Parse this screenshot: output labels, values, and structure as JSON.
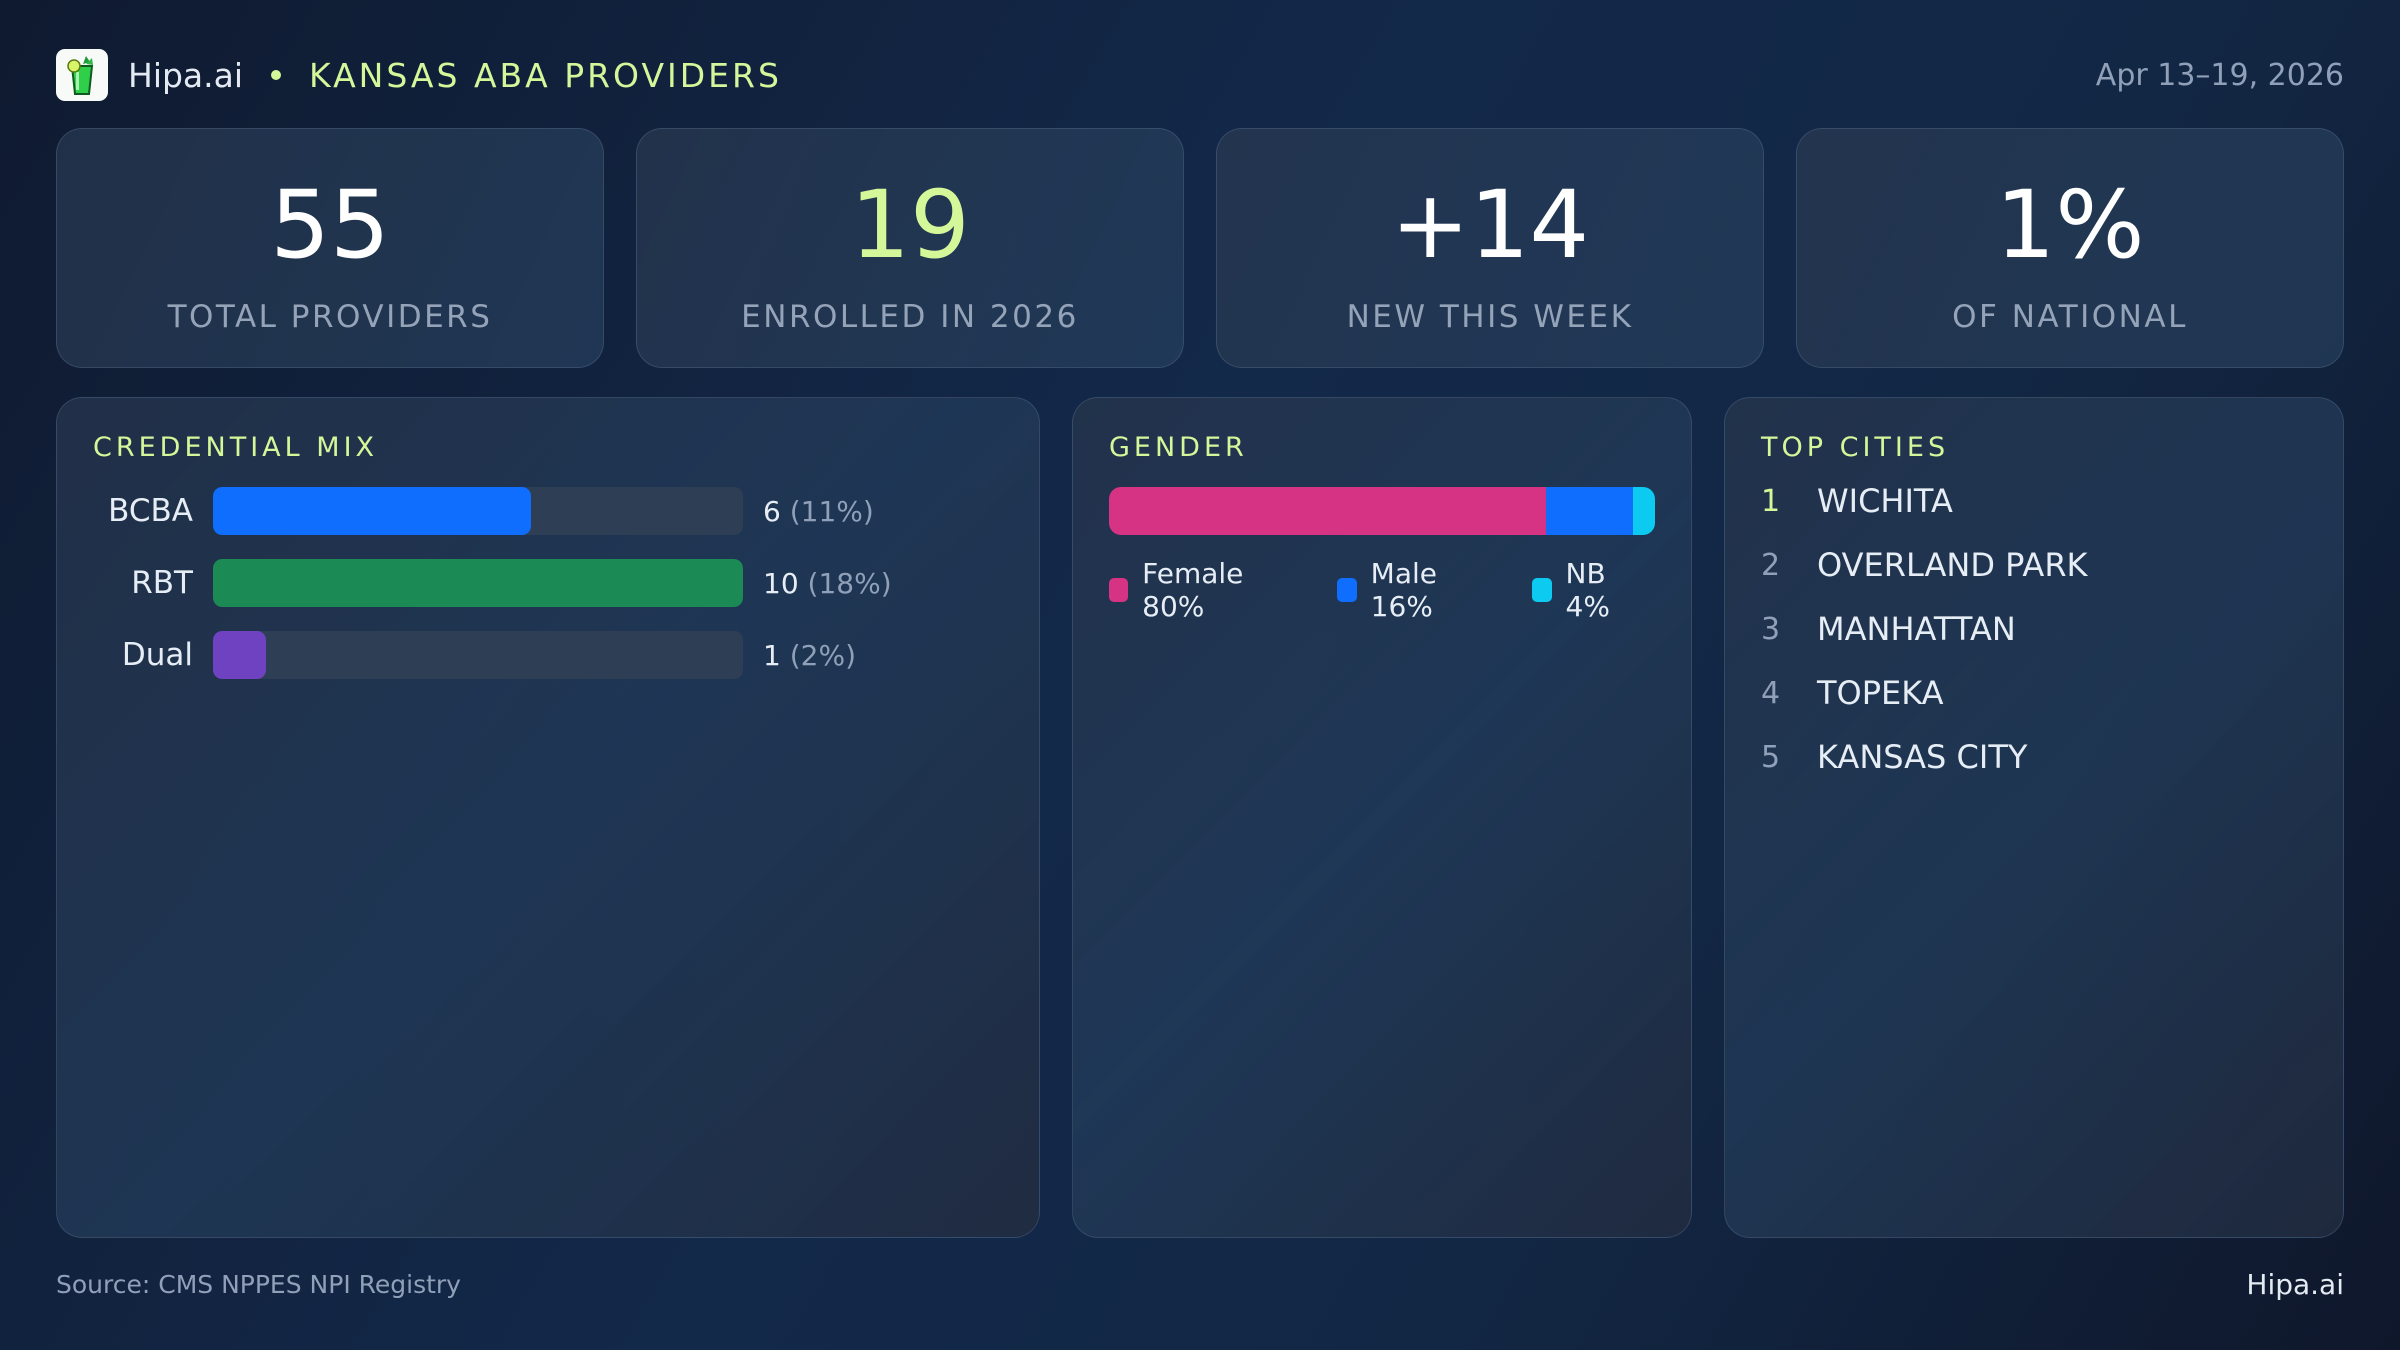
{
  "header": {
    "logo_icon": "mojito-glass-icon",
    "brand": "Hipa.ai",
    "separator": "•",
    "title": "KANSAS ABA PROVIDERS",
    "date_range": "Apr 13–19, 2026"
  },
  "stats": [
    {
      "value": "55",
      "label": "TOTAL PROVIDERS",
      "accent": false
    },
    {
      "value": "19",
      "label": "ENROLLED IN 2026",
      "accent": true
    },
    {
      "value": "+14",
      "label": "NEW THIS WEEK",
      "accent": false
    },
    {
      "value": "1%",
      "label": "OF NATIONAL",
      "accent": false
    }
  ],
  "credential_mix": {
    "title": "CREDENTIAL MIX",
    "rows": [
      {
        "label": "BCBA",
        "count": "6",
        "pct": "(11%)",
        "color": "#0f6efd"
      },
      {
        "label": "RBT",
        "count": "10",
        "pct": "(18%)",
        "color": "#1b8a55"
      },
      {
        "label": "Dual",
        "count": "1",
        "pct": "(2%)",
        "color": "#6f42c1"
      }
    ]
  },
  "gender": {
    "title": "GENDER",
    "segments": [
      {
        "label": "Female 80%",
        "name": "Female",
        "pct": 80,
        "color": "#d63384"
      },
      {
        "label": "Male 16%",
        "name": "Male",
        "pct": 16,
        "color": "#0f6efd"
      },
      {
        "label": "NB 4%",
        "name": "NB",
        "pct": 4,
        "color": "#0dcaf0"
      }
    ]
  },
  "top_cities": {
    "title": "TOP CITIES",
    "items": [
      {
        "rank": "1",
        "name": "WICHITA"
      },
      {
        "rank": "2",
        "name": "OVERLAND PARK"
      },
      {
        "rank": "3",
        "name": "MANHATTAN"
      },
      {
        "rank": "4",
        "name": "TOPEKA"
      },
      {
        "rank": "5",
        "name": "KANSAS CITY"
      }
    ]
  },
  "footer": {
    "source": "Source: CMS NPPES NPI Registry",
    "brand": "Hipa.ai"
  },
  "colors": {
    "accent": "#d4f79a",
    "muted": "#8fa0b8"
  },
  "chart_data": [
    {
      "type": "bar",
      "title": "CREDENTIAL MIX",
      "orientation": "horizontal",
      "categories": [
        "BCBA",
        "RBT",
        "Dual"
      ],
      "values": [
        6,
        10,
        1
      ],
      "percentages": [
        11,
        18,
        2
      ],
      "xlim": [
        0,
        10
      ],
      "grid": false
    },
    {
      "type": "bar",
      "title": "GENDER",
      "orientation": "horizontal-stacked",
      "categories": [
        "Female",
        "Male",
        "NB"
      ],
      "values": [
        80,
        16,
        4
      ],
      "unit": "%",
      "legend_position": "bottom"
    }
  ]
}
